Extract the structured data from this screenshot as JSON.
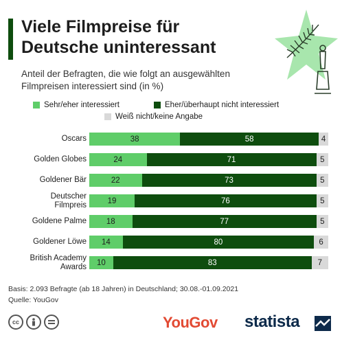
{
  "header": {
    "title_line1": "Viele Filmpreise für",
    "title_line2": "Deutsche uninteressant",
    "subtitle": "Anteil der Befragten, die wie folgt an ausgewählten Filmpreisen interessiert sind (in %)"
  },
  "colors": {
    "interested": "#5fcd69",
    "not_interested": "#0e4d0e",
    "no_answer": "#d9d9d9",
    "accent": "#0e4d0e"
  },
  "chart_data": {
    "type": "bar",
    "orientation": "horizontal",
    "stacked": true,
    "categories": [
      "Oscars",
      "Golden Globes",
      "Goldener Bär",
      "Deutscher Filmpreis",
      "Goldene Palme",
      "Goldener Löwe",
      "British Academy Awards"
    ],
    "category_lines": [
      [
        "Oscars"
      ],
      [
        "Golden Globes"
      ],
      [
        "Goldener Bär"
      ],
      [
        "Deutscher",
        "Filmpreis"
      ],
      [
        "Goldene Palme"
      ],
      [
        "Goldener Löwe"
      ],
      [
        "British Academy",
        "Awards"
      ]
    ],
    "series": [
      {
        "name": "Sehr/eher interessiert",
        "values": [
          38,
          24,
          22,
          19,
          18,
          14,
          10
        ]
      },
      {
        "name": "Eher/überhaupt nicht interessiert",
        "values": [
          58,
          71,
          73,
          76,
          77,
          80,
          83
        ]
      },
      {
        "name": "Weiß nicht/keine Angabe",
        "values": [
          4,
          5,
          5,
          5,
          5,
          6,
          7
        ]
      }
    ],
    "xlim": [
      0,
      100
    ],
    "legend_position": "top",
    "grid": false
  },
  "footer": {
    "basis": "Basis: 2.093 Befragte (ab 18 Jahren) in Deutschland; 30.08.-01.09.2021",
    "source": "Quelle: YouGov",
    "cc_icons": [
      "cc-icon",
      "by-person-icon",
      "equals-icon"
    ],
    "yougov_logo": "YouGov",
    "statista_logo": "statista"
  }
}
